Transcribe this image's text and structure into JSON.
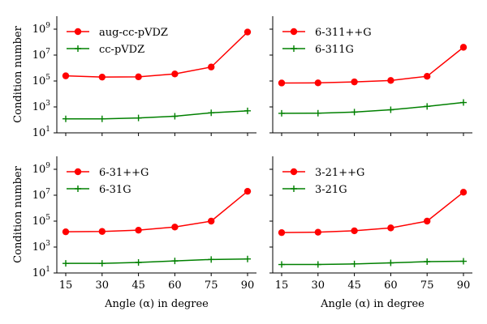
{
  "chart_data": [
    {
      "type": "line",
      "x": [
        15,
        30,
        45,
        60,
        75,
        90
      ],
      "xlabel": "",
      "ylabel": "Condition number",
      "yscale": "log",
      "ylim": [
        10,
        10000000000
      ],
      "xticks": [
        "15",
        "30",
        "45",
        "60",
        "75",
        "90"
      ],
      "yticks": [
        {
          "base": "10",
          "exp": "1"
        },
        {
          "base": "10",
          "exp": "3"
        },
        {
          "base": "10",
          "exp": "5"
        },
        {
          "base": "10",
          "exp": "7"
        },
        {
          "base": "10",
          "exp": "9"
        }
      ],
      "legend_position": "top-left",
      "series": [
        {
          "name": "aug-cc-pVDZ",
          "color": "#ff0000",
          "marker": "circle",
          "values": [
            250000,
            200000,
            210000,
            350000,
            1200000,
            600000000
          ]
        },
        {
          "name": "cc-pVDZ",
          "color": "#008000",
          "marker": "plus",
          "values": [
            120,
            120,
            140,
            190,
            350,
            500
          ]
        }
      ]
    },
    {
      "type": "line",
      "x": [
        15,
        30,
        45,
        60,
        75,
        90
      ],
      "xlabel": "",
      "ylabel": "",
      "yscale": "log",
      "ylim": [
        10,
        10000000000
      ],
      "xticks": [
        "15",
        "30",
        "45",
        "60",
        "75",
        "90"
      ],
      "yticks": [
        {
          "base": "10",
          "exp": "1"
        },
        {
          "base": "10",
          "exp": "3"
        },
        {
          "base": "10",
          "exp": "5"
        },
        {
          "base": "10",
          "exp": "7"
        },
        {
          "base": "10",
          "exp": "9"
        }
      ],
      "legend_position": "top-left",
      "series": [
        {
          "name": "6-311++G",
          "color": "#ff0000",
          "marker": "circle",
          "values": [
            70000,
            72000,
            85000,
            110000,
            230000,
            40000000
          ]
        },
        {
          "name": "6-311G",
          "color": "#008000",
          "marker": "plus",
          "values": [
            320,
            330,
            400,
            600,
            1100,
            2200
          ]
        }
      ]
    },
    {
      "type": "line",
      "x": [
        15,
        30,
        45,
        60,
        75,
        90
      ],
      "xlabel": "Angle (α) in degree",
      "ylabel": "Condition number",
      "yscale": "log",
      "ylim": [
        10,
        10000000000
      ],
      "xticks": [
        "15",
        "30",
        "45",
        "60",
        "75",
        "90"
      ],
      "yticks": [
        {
          "base": "10",
          "exp": "1"
        },
        {
          "base": "10",
          "exp": "3"
        },
        {
          "base": "10",
          "exp": "5"
        },
        {
          "base": "10",
          "exp": "7"
        },
        {
          "base": "10",
          "exp": "9"
        }
      ],
      "legend_position": "top-left",
      "series": [
        {
          "name": "6-31++G",
          "color": "#ff0000",
          "marker": "circle",
          "values": [
            15000,
            16000,
            20000,
            35000,
            100000,
            20000000
          ]
        },
        {
          "name": "6-31G",
          "color": "#008000",
          "marker": "plus",
          "values": [
            55,
            55,
            65,
            85,
            110,
            120
          ]
        }
      ]
    },
    {
      "type": "line",
      "x": [
        15,
        30,
        45,
        60,
        75,
        90
      ],
      "xlabel": "Angle (α) in degree",
      "ylabel": "",
      "yscale": "log",
      "ylim": [
        10,
        10000000000
      ],
      "xticks": [
        "15",
        "30",
        "45",
        "60",
        "75",
        "90"
      ],
      "yticks": [
        {
          "base": "10",
          "exp": "1"
        },
        {
          "base": "10",
          "exp": "3"
        },
        {
          "base": "10",
          "exp": "5"
        },
        {
          "base": "10",
          "exp": "7"
        },
        {
          "base": "10",
          "exp": "9"
        }
      ],
      "legend_position": "top-left",
      "series": [
        {
          "name": "3-21++G",
          "color": "#ff0000",
          "marker": "circle",
          "values": [
            13000,
            14000,
            18000,
            30000,
            100000,
            17000000
          ]
        },
        {
          "name": "3-21G",
          "color": "#008000",
          "marker": "plus",
          "values": [
            45,
            45,
            50,
            60,
            75,
            80
          ]
        }
      ]
    }
  ]
}
